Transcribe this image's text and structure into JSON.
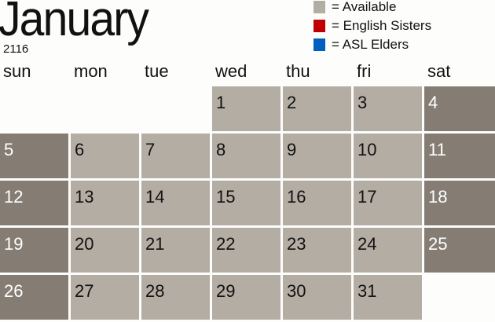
{
  "header": {
    "month": "January",
    "year": "2116"
  },
  "legend": [
    {
      "label": "= Available",
      "color": "#b4ada4"
    },
    {
      "label": "= English Sisters",
      "color": "#c00000"
    },
    {
      "label": "= ASL Elders",
      "color": "#0060c0"
    }
  ],
  "colors": {
    "weekday": "#b4ada4",
    "weekend": "#857d74"
  },
  "weekdays": [
    "sun",
    "mon",
    "tue",
    "wed",
    "thu",
    "fri",
    "sat"
  ],
  "first_weekday": 3,
  "days": [
    "1",
    "2",
    "3",
    "4",
    "5",
    "6",
    "7",
    "8",
    "9",
    "10",
    "11",
    "12",
    "13",
    "14",
    "15",
    "16",
    "17",
    "18",
    "19",
    "20",
    "21",
    "22",
    "23",
    "24",
    "25",
    "26",
    "27",
    "28",
    "29",
    "30",
    "31"
  ]
}
